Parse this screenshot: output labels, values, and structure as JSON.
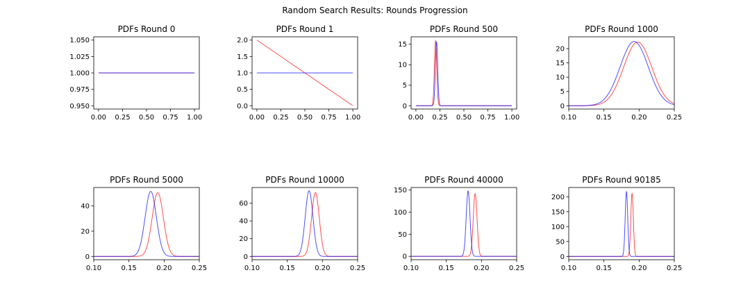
{
  "figure": {
    "suptitle": "Random Search Results: Rounds Progression"
  },
  "colors": {
    "series_a": "#ff0000",
    "series_b": "#0000ff"
  },
  "chart_data": [
    {
      "type": "line",
      "title": "PDFs Round 0",
      "xlim": [
        -0.05,
        1.05
      ],
      "ylim": [
        0.945,
        1.055
      ],
      "xticks": [
        0.0,
        0.25,
        0.5,
        0.75,
        1.0
      ],
      "xtick_labels": [
        "0.00",
        "0.25",
        "0.50",
        "0.75",
        "1.00"
      ],
      "yticks": [
        0.95,
        0.975,
        1.0,
        1.025,
        1.05
      ],
      "ytick_labels": [
        "0.950",
        "0.975",
        "1.000",
        "1.025",
        "1.050"
      ],
      "series": [
        {
          "color": "#ff0000",
          "kind": "linear",
          "x_range": [
            0,
            1
          ],
          "y_start": 1.0,
          "y_end": 1.0
        },
        {
          "color": "#0000ff",
          "kind": "linear",
          "x_range": [
            0,
            1
          ],
          "y_start": 1.0,
          "y_end": 1.0
        }
      ]
    },
    {
      "type": "line",
      "title": "PDFs Round 1",
      "xlim": [
        -0.05,
        1.05
      ],
      "ylim": [
        -0.1,
        2.1
      ],
      "xticks": [
        0.0,
        0.25,
        0.5,
        0.75,
        1.0
      ],
      "xtick_labels": [
        "0.00",
        "0.25",
        "0.50",
        "0.75",
        "1.00"
      ],
      "yticks": [
        0.0,
        0.5,
        1.0,
        1.5,
        2.0
      ],
      "ytick_labels": [
        "0.0",
        "0.5",
        "1.0",
        "1.5",
        "2.0"
      ],
      "series": [
        {
          "color": "#ff0000",
          "kind": "linear",
          "x_range": [
            0,
            1
          ],
          "y_start": 2.0,
          "y_end": 0.0
        },
        {
          "color": "#0000ff",
          "kind": "linear",
          "x_range": [
            0,
            1
          ],
          "y_start": 1.0,
          "y_end": 1.0
        }
      ]
    },
    {
      "type": "line",
      "title": "PDFs Round 500",
      "xlim": [
        -0.05,
        1.05
      ],
      "ylim": [
        -0.8,
        16.8
      ],
      "xticks": [
        0.0,
        0.25,
        0.5,
        0.75,
        1.0
      ],
      "xtick_labels": [
        "0.00",
        "0.25",
        "0.50",
        "0.75",
        "1.00"
      ],
      "yticks": [
        0,
        5,
        10,
        15
      ],
      "ytick_labels": [
        "0",
        "5",
        "10",
        "15"
      ],
      "series": [
        {
          "color": "#ff0000",
          "kind": "gaussian",
          "x_range": [
            0,
            1
          ],
          "mean": 0.205,
          "peak": 15.9
        },
        {
          "color": "#0000ff",
          "kind": "gaussian",
          "x_range": [
            0,
            1
          ],
          "mean": 0.215,
          "peak": 15.6
        }
      ]
    },
    {
      "type": "line",
      "title": "PDFs Round 1000",
      "xlim": [
        0.1,
        0.25
      ],
      "ylim": [
        -1.15,
        24.15
      ],
      "xticks": [
        0.1,
        0.15,
        0.2,
        0.25
      ],
      "xtick_labels": [
        "0.10",
        "0.15",
        "0.20",
        "0.25"
      ],
      "yticks": [
        0,
        5,
        10,
        15,
        20
      ],
      "ytick_labels": [
        "0",
        "5",
        "10",
        "15",
        "20"
      ],
      "series": [
        {
          "color": "#ff0000",
          "kind": "gaussian",
          "x_range": [
            0.1,
            0.25
          ],
          "mean": 0.198,
          "peak": 22.3
        },
        {
          "color": "#0000ff",
          "kind": "gaussian",
          "x_range": [
            0.1,
            0.25
          ],
          "mean": 0.193,
          "peak": 22.5
        }
      ]
    },
    {
      "type": "line",
      "title": "PDFs Round 5000",
      "xlim": [
        0.1,
        0.25
      ],
      "ylim": [
        -2.6,
        54.6
      ],
      "xticks": [
        0.1,
        0.15,
        0.2,
        0.25
      ],
      "xtick_labels": [
        "0.10",
        "0.15",
        "0.20",
        "0.25"
      ],
      "yticks": [
        0,
        20,
        40
      ],
      "ytick_labels": [
        "0",
        "20",
        "40"
      ],
      "series": [
        {
          "color": "#ff0000",
          "kind": "gaussian",
          "x_range": [
            0.1,
            0.25
          ],
          "mean": 0.191,
          "peak": 50.5
        },
        {
          "color": "#0000ff",
          "kind": "gaussian",
          "x_range": [
            0.1,
            0.25
          ],
          "mean": 0.181,
          "peak": 51.5
        }
      ]
    },
    {
      "type": "line",
      "title": "PDFs Round 10000",
      "xlim": [
        0.1,
        0.25
      ],
      "ylim": [
        -3.7,
        77.7
      ],
      "xticks": [
        0.1,
        0.15,
        0.2,
        0.25
      ],
      "xtick_labels": [
        "0.10",
        "0.15",
        "0.20",
        "0.25"
      ],
      "yticks": [
        0,
        20,
        40,
        60
      ],
      "ytick_labels": [
        "0",
        "20",
        "40",
        "60"
      ],
      "series": [
        {
          "color": "#ff0000",
          "kind": "gaussian",
          "x_range": [
            0.1,
            0.25
          ],
          "mean": 0.19,
          "peak": 72
        },
        {
          "color": "#0000ff",
          "kind": "gaussian",
          "x_range": [
            0.1,
            0.25
          ],
          "mean": 0.181,
          "peak": 74
        }
      ]
    },
    {
      "type": "line",
      "title": "PDFs Round 40000",
      "xlim": [
        0.1,
        0.25
      ],
      "ylim": [
        -7.6,
        155.6
      ],
      "xticks": [
        0.1,
        0.15,
        0.2,
        0.25
      ],
      "xtick_labels": [
        "0.10",
        "0.15",
        "0.20",
        "0.25"
      ],
      "yticks": [
        0,
        50,
        100,
        150
      ],
      "ytick_labels": [
        "0",
        "50",
        "100",
        "150"
      ],
      "series": [
        {
          "color": "#ff0000",
          "kind": "gaussian",
          "x_range": [
            0.1,
            0.25
          ],
          "mean": 0.191,
          "peak": 142
        },
        {
          "color": "#0000ff",
          "kind": "gaussian",
          "x_range": [
            0.1,
            0.25
          ],
          "mean": 0.181,
          "peak": 148
        }
      ]
    },
    {
      "type": "line",
      "title": "PDFs Round 90185",
      "xlim": [
        0.1,
        0.25
      ],
      "ylim": [
        -11,
        231
      ],
      "xticks": [
        0.1,
        0.15,
        0.2,
        0.25
      ],
      "xtick_labels": [
        "0.10",
        "0.15",
        "0.20",
        "0.25"
      ],
      "yticks": [
        0,
        50,
        100,
        150,
        200
      ],
      "ytick_labels": [
        "0",
        "50",
        "100",
        "150",
        "200"
      ],
      "series": [
        {
          "color": "#ff0000",
          "kind": "gaussian",
          "x_range": [
            0.1,
            0.25
          ],
          "mean": 0.19,
          "peak": 212
        },
        {
          "color": "#0000ff",
          "kind": "gaussian",
          "x_range": [
            0.1,
            0.25
          ],
          "mean": 0.182,
          "peak": 218
        }
      ]
    }
  ]
}
